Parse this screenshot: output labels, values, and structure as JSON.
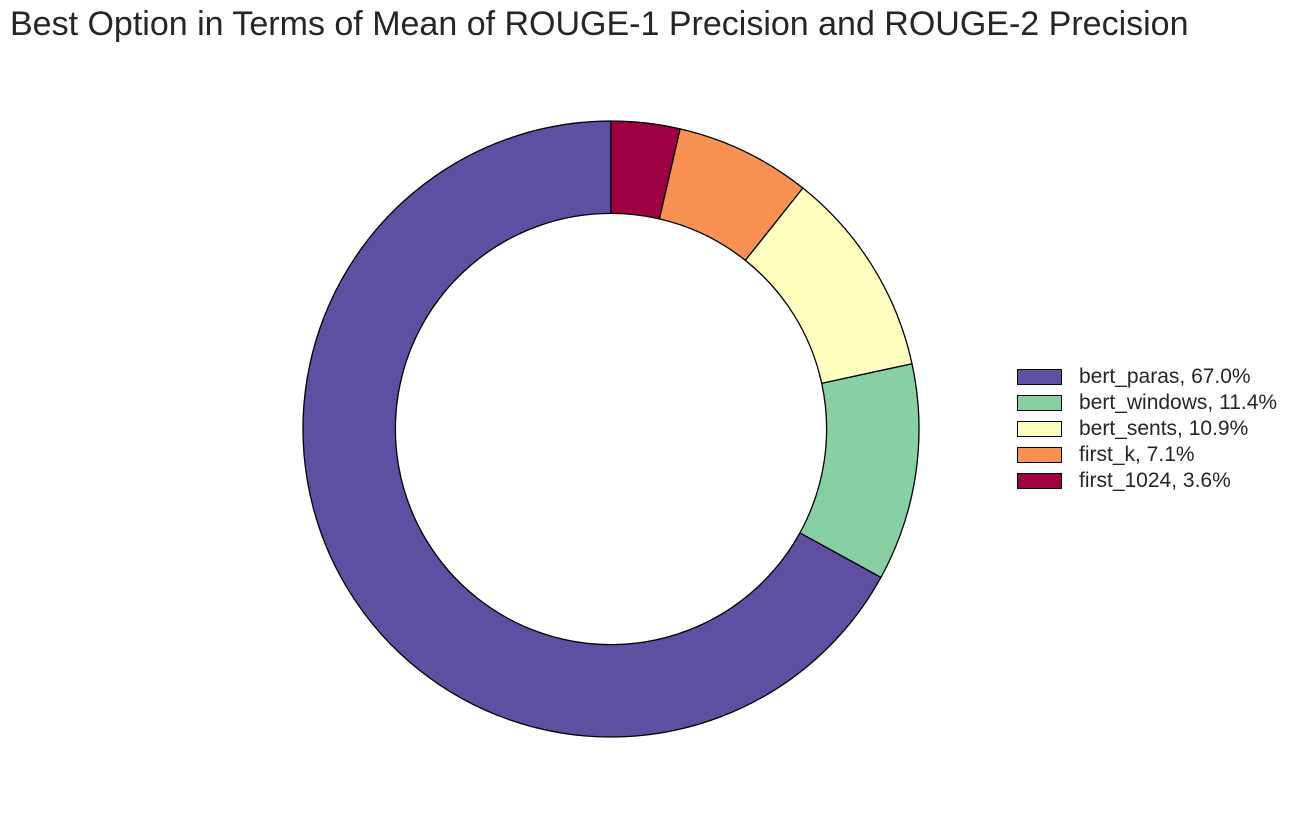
{
  "chart_data": {
    "type": "pie",
    "variant": "donut",
    "title": "Best Option in Terms of Mean of ROUGE-1 Precision and ROUGE-2 Precision",
    "start_angle_deg": 90,
    "direction": "counterclockwise",
    "inner_radius_fraction": 0.7,
    "edge_color": "#000000",
    "legend_placement": "right",
    "slices": [
      {
        "label": "bert_paras",
        "value": 67.0,
        "legend": "bert_paras, 67.0%",
        "color": "#5E4FA2"
      },
      {
        "label": "bert_windows",
        "value": 11.4,
        "legend": "bert_windows, 11.4%",
        "color": "#88CFA4"
      },
      {
        "label": "bert_sents",
        "value": 10.9,
        "legend": "bert_sents, 10.9%",
        "color": "#FFFFBF"
      },
      {
        "label": "first_k",
        "value": 7.1,
        "legend": "first_k, 7.1%",
        "color": "#F99153"
      },
      {
        "label": "first_1024",
        "value": 3.6,
        "legend": "first_1024, 3.6%",
        "color": "#9E0142"
      }
    ]
  }
}
